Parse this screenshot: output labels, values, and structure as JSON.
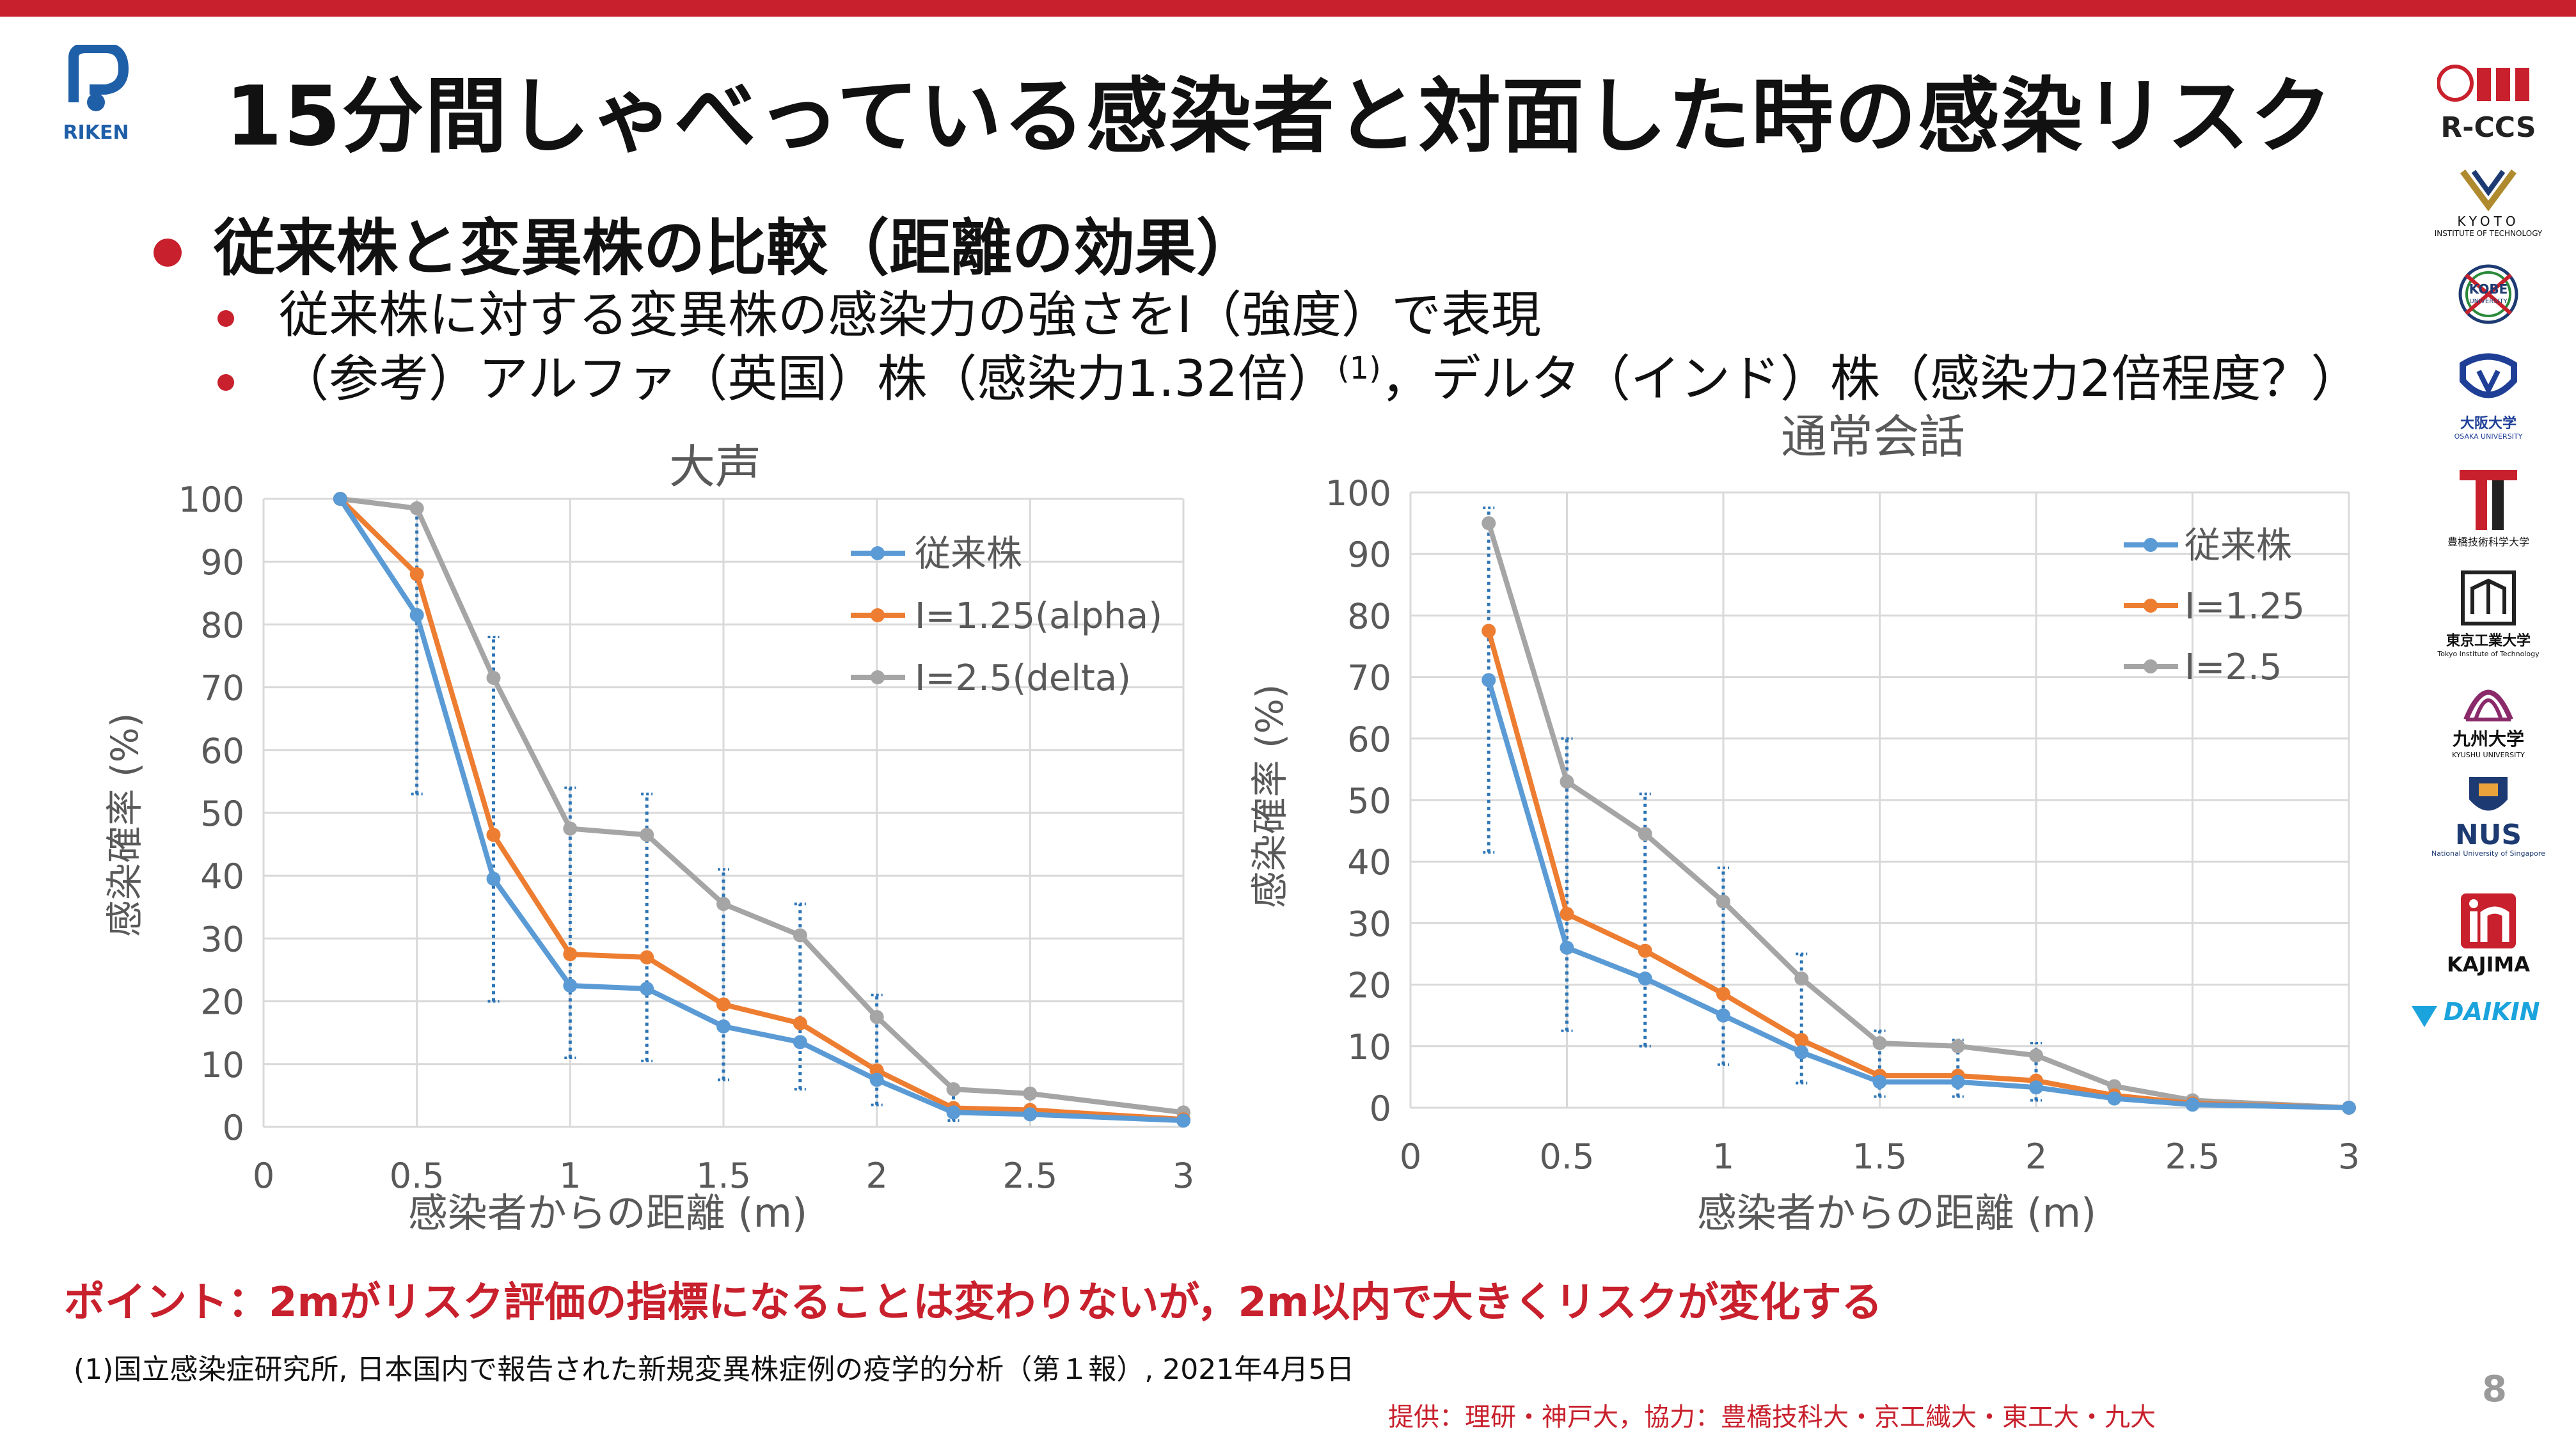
{
  "colors": {
    "accent": "#c8202c",
    "series1": "#5b9bd5",
    "series2": "#ed7d31",
    "series3": "#a5a5a5",
    "errorbar": "#2e75b6",
    "grid": "#d9d9d9",
    "axis_text": "#595959"
  },
  "header": {
    "title": "15分間しゃべっている感染者と対面した時の感染リスク",
    "logo_text": "RIKEN"
  },
  "bullets": {
    "main": "従来株と変異株の比較（距離の効果）",
    "sub1": "従来株に対する変異株の感染力の強さをI（強度）で表現",
    "sub2_pre": "（参考）アルファ（英国）株（感染力1.32倍）",
    "sub2_sup": "(1)",
    "sub2_post": "，デルタ（インド）株（感染力2倍程度？）"
  },
  "chart_data": [
    {
      "type": "line",
      "title": "大声",
      "xlabel": "感染者からの距離 (m)",
      "ylabel": "感染確率 (%)",
      "xlim": [
        0,
        3
      ],
      "ylim": [
        0,
        100
      ],
      "xticks": [
        "0",
        "0.5",
        "1",
        "1.5",
        "2",
        "2.5",
        "3"
      ],
      "yticks": [
        "0",
        "10",
        "20",
        "30",
        "40",
        "50",
        "60",
        "70",
        "80",
        "90",
        "100"
      ],
      "grid": true,
      "legend": "top-right",
      "x": [
        0.25,
        0.5,
        0.75,
        1.0,
        1.25,
        1.5,
        1.75,
        2.0,
        2.25,
        2.5,
        3.0
      ],
      "series": [
        {
          "name": "従来株",
          "color": "#5b9bd5",
          "values": [
            100,
            81.5,
            39.5,
            22.5,
            22,
            16,
            13.5,
            7.5,
            2.3,
            2,
            1
          ]
        },
        {
          "name": "I=1.25(alpha)",
          "color": "#ed7d31",
          "values": [
            100,
            88,
            46.5,
            27.5,
            27,
            19.5,
            16.5,
            9,
            3,
            2.7,
            1.2
          ]
        },
        {
          "name": "I=2.5(delta)",
          "color": "#a5a5a5",
          "values": [
            100,
            98.5,
            71.5,
            47.5,
            46.5,
            35.5,
            30.5,
            17.5,
            6,
            5.3,
            2.3
          ]
        }
      ],
      "error_bars": {
        "x": [
          0.5,
          0.75,
          1.0,
          1.25,
          1.5,
          1.75,
          2.0,
          2.25
        ],
        "low": [
          53,
          20,
          11,
          10.5,
          7.5,
          6,
          3.5,
          1
        ],
        "high": [
          98.5,
          78,
          54,
          53,
          41,
          35.5,
          21,
          6
        ]
      }
    },
    {
      "type": "line",
      "title": "通常会話",
      "xlabel": "感染者からの距離 (m)",
      "ylabel": "感染確率 (%)",
      "xlim": [
        0,
        3
      ],
      "ylim": [
        0,
        100
      ],
      "xticks": [
        "0",
        "0.5",
        "1",
        "1.5",
        "2",
        "2.5",
        "3"
      ],
      "yticks": [
        "0",
        "10",
        "20",
        "30",
        "40",
        "50",
        "60",
        "70",
        "80",
        "90",
        "100"
      ],
      "grid": true,
      "legend": "top-right",
      "x": [
        0.25,
        0.5,
        0.75,
        1.0,
        1.25,
        1.5,
        1.75,
        2.0,
        2.25,
        2.5,
        3.0
      ],
      "series": [
        {
          "name": "従来株",
          "color": "#5b9bd5",
          "values": [
            69.5,
            26,
            21,
            15,
            9,
            4.2,
            4.2,
            3.3,
            1.5,
            0.5,
            0
          ]
        },
        {
          "name": "I=1.25",
          "color": "#ed7d31",
          "values": [
            77.5,
            31.5,
            25.5,
            18.5,
            11,
            5.2,
            5.2,
            4.4,
            2,
            0.7,
            0
          ]
        },
        {
          "name": "I=2.5",
          "color": "#a5a5a5",
          "values": [
            95,
            53,
            44.5,
            33.5,
            21,
            10.5,
            10,
            8.5,
            3.5,
            1.2,
            0
          ]
        }
      ],
      "error_bars": {
        "x": [
          0.25,
          0.5,
          0.75,
          1.0,
          1.25,
          1.5,
          1.75,
          2.0
        ],
        "low": [
          41.5,
          12.5,
          10,
          7,
          4,
          1.8,
          1.8,
          1.2
        ],
        "high": [
          97.5,
          60,
          51,
          39,
          25,
          12.5,
          11,
          10.5
        ]
      }
    }
  ],
  "footer": {
    "point": "ポイント：2mがリスク評価の指標になることは変わりないが，2m以内で大きくリスクが変化する",
    "reference": "(1)国立感染症研究所, 日本国内で報告された新規変異株症例の疫学的分析（第１報）, 2021年4月5日",
    "credit": "提供：理研・神戸大，協力：豊橋技科大・京工繊大・東工大・九大",
    "page_number": "8"
  },
  "logos": [
    {
      "name": "R-CCS"
    },
    {
      "name": "KYOTO",
      "sub": "INSTITUTE OF TECHNOLOGY"
    },
    {
      "name": "KOBE",
      "sub": "UNIVERSITY"
    },
    {
      "name": "大阪大学",
      "sub": "OSAKA UNIVERSITY"
    },
    {
      "name": "豊橋技術科学大学"
    },
    {
      "name": "東京工業大学",
      "sub": "Tokyo Institute of Technology"
    },
    {
      "name": "九州大学",
      "sub": "KYUSHU UNIVERSITY"
    },
    {
      "name": "NUS",
      "sub": "National University of Singapore"
    },
    {
      "name": "KAJIMA"
    },
    {
      "name": "DAIKIN"
    }
  ]
}
